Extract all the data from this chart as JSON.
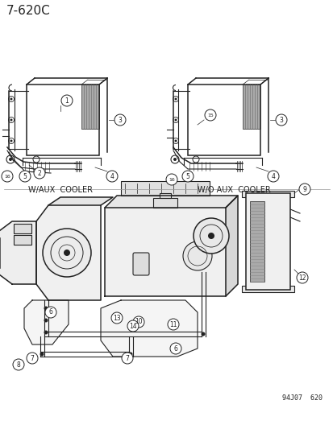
{
  "bg_color": "#ffffff",
  "line_color": "#222222",
  "diagram_title": "7-620C",
  "watermark": "94J07  620",
  "label1_text": "W/AUX  COOLER",
  "label2_text": "W/O AUX  COOLER",
  "title_fontsize": 11,
  "label_fontsize": 7,
  "callout_fontsize": 5.5,
  "watermark_fontsize": 6
}
